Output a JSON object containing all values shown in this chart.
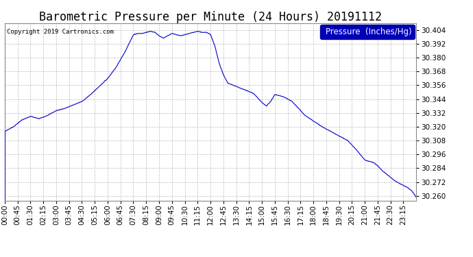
{
  "title": "Barometric Pressure per Minute (24 Hours) 20191112",
  "copyright": "Copyright 2019 Cartronics.com",
  "legend_label": "Pressure  (Inches/Hg)",
  "line_color": "#0000CC",
  "background_color": "#FFFFFF",
  "grid_color": "#BBBBBB",
  "ylim": [
    30.256,
    30.41
  ],
  "yticks": [
    30.26,
    30.272,
    30.284,
    30.296,
    30.308,
    30.32,
    30.332,
    30.344,
    30.356,
    30.368,
    30.38,
    30.392,
    30.404
  ],
  "xtick_labels": [
    "00:00",
    "00:45",
    "01:30",
    "02:15",
    "03:00",
    "03:45",
    "04:30",
    "05:15",
    "06:00",
    "06:45",
    "07:30",
    "08:15",
    "09:00",
    "09:45",
    "10:30",
    "11:15",
    "12:00",
    "12:45",
    "13:30",
    "14:15",
    "15:00",
    "15:45",
    "16:30",
    "17:15",
    "18:00",
    "18:45",
    "19:30",
    "20:15",
    "21:00",
    "21:45",
    "22:30",
    "23:15"
  ],
  "title_fontsize": 12,
  "tick_fontsize": 7.5,
  "legend_fontsize": 8.5,
  "copyright_fontsize": 6.5,
  "keypoints_t": [
    0,
    30,
    60,
    90,
    105,
    120,
    150,
    180,
    210,
    240,
    270,
    300,
    330,
    360,
    390,
    420,
    450,
    465,
    480,
    495,
    510,
    525,
    540,
    555,
    570,
    585,
    600,
    615,
    630,
    645,
    660,
    675,
    690,
    705,
    720,
    735,
    750,
    765,
    780,
    810,
    840,
    870,
    900,
    915,
    930,
    945,
    960,
    975,
    990,
    1005,
    1020,
    1050,
    1080,
    1110,
    1140,
    1170,
    1200,
    1230,
    1260,
    1290,
    1305,
    1320,
    1335,
    1350,
    1365,
    1380,
    1395,
    1410,
    1425,
    1439
  ],
  "keypoints_v": [
    30.316,
    30.32,
    30.326,
    30.329,
    30.328,
    30.327,
    30.33,
    30.334,
    30.336,
    30.339,
    30.342,
    30.348,
    30.355,
    30.362,
    30.372,
    30.385,
    30.4,
    30.401,
    30.401,
    30.402,
    30.403,
    30.402,
    30.399,
    30.397,
    30.399,
    30.401,
    30.4,
    30.399,
    30.4,
    30.401,
    30.402,
    30.403,
    30.402,
    30.402,
    30.4,
    30.39,
    30.375,
    30.365,
    30.358,
    30.355,
    30.352,
    30.349,
    30.341,
    30.338,
    30.342,
    30.348,
    30.347,
    30.346,
    30.344,
    30.342,
    30.338,
    30.33,
    30.325,
    30.32,
    30.316,
    30.312,
    30.308,
    30.3,
    30.291,
    30.289,
    30.286,
    30.282,
    30.279,
    30.276,
    30.273,
    30.271,
    30.269,
    30.267,
    30.264,
    30.259
  ]
}
